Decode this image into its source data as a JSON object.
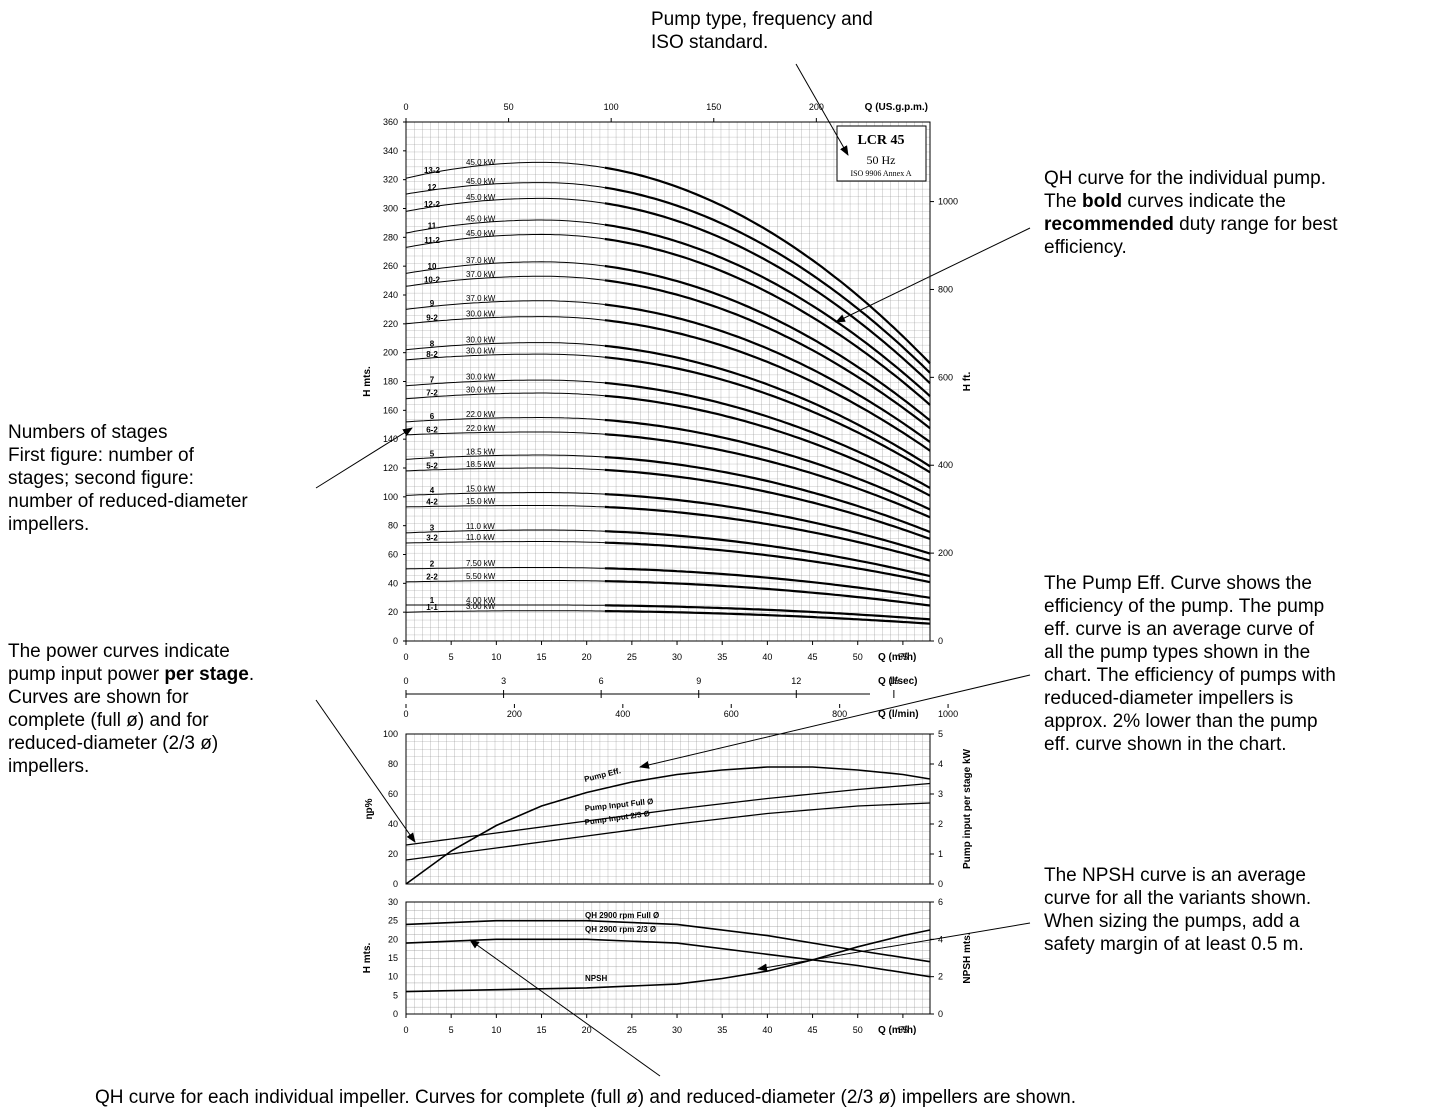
{
  "annotations": {
    "pump_type": [
      "Pump type, frequency and",
      "ISO standard."
    ],
    "qh_curve": {
      "line1": "QH curve for the individual pump.",
      "line2_pre": "The ",
      "line2_bold": "bold",
      "line2_post": " curves indicate the",
      "line3_bold": "recommended",
      "line3_post": " duty range for best",
      "line4": "efficiency."
    },
    "stages": [
      "Numbers of stages",
      "First figure: number of",
      "stages; second figure:",
      "number of reduced-diameter",
      "impellers."
    ],
    "power": {
      "line1": "The power curves indicate",
      "line2_pre": "pump input power ",
      "line2_bold": "per stage",
      "line2_post": ".",
      "rest": [
        "Curves are shown for",
        "complete (full ø) and for",
        "reduced-diameter (2/3 ø)",
        "impellers."
      ]
    },
    "eff": [
      "The Pump Eff. Curve shows the",
      "efficiency of the pump. The pump",
      "eff. curve is an average curve of",
      "all the pump types shown in the",
      "chart. The efficiency of pumps with",
      "reduced-diameter impellers is",
      "approx. 2% lower than the pump",
      "eff. curve shown in the chart."
    ],
    "npsh": [
      "The NPSH curve is an average",
      "curve for all the variants shown.",
      "When sizing the pumps, add a",
      "safety margin of at least 0.5 m."
    ],
    "bottom": "QH curve for each  individual impeller. Curves for complete (full ø) and reduced-diameter (2/3 ø) impellers are shown."
  },
  "chart_data": [
    {
      "type": "line",
      "title_box": {
        "model": "LCR 45",
        "frequency": "50 Hz",
        "standard": "ISO 9906 Annex A"
      },
      "x_label": "Q (m³/h)",
      "x_ticks": [
        0,
        5,
        10,
        15,
        20,
        25,
        30,
        35,
        40,
        45,
        50,
        55
      ],
      "xlim": [
        0,
        58
      ],
      "x_top_label": "Q (US.g.p.m.)",
      "x_top_ticks": [
        0,
        50,
        100,
        150,
        200
      ],
      "x_ls_label": "Q (l/sec)",
      "x_ls_ticks": [
        0,
        3,
        6,
        9,
        12,
        15
      ],
      "x_lmin_label": "Q (l/min)",
      "x_lmin_ticks": [
        0,
        200,
        400,
        600,
        800,
        1000
      ],
      "y_label": "H mts.",
      "y_ticks": [
        0,
        20,
        40,
        60,
        80,
        100,
        120,
        140,
        160,
        180,
        200,
        220,
        240,
        260,
        280,
        300,
        320,
        340,
        360
      ],
      "ylim": [
        0,
        360
      ],
      "y2_label": "H ft.",
      "y2_ticks": [
        0,
        200,
        400,
        600,
        800,
        1000
      ],
      "bold_range": [
        22,
        58
      ],
      "series": [
        {
          "name": "13-2",
          "power": "45.0 kW",
          "h0": 321,
          "hmax": 332
        },
        {
          "name": "12",
          "power": "45.0 kW",
          "h0": 310,
          "hmax": 318
        },
        {
          "name": "12-2",
          "power": "45.0 kW",
          "h0": 298,
          "hmax": 307
        },
        {
          "name": "11",
          "power": "45.0 kW",
          "h0": 283,
          "hmax": 292
        },
        {
          "name": "11-2",
          "power": "45.0 kW",
          "h0": 273,
          "hmax": 282
        },
        {
          "name": "10",
          "power": "37.0 kW",
          "h0": 255,
          "hmax": 263
        },
        {
          "name": "10-2",
          "power": "37.0 kW",
          "h0": 246,
          "hmax": 253
        },
        {
          "name": "9",
          "power": "37.0 kW",
          "h0": 230,
          "hmax": 236
        },
        {
          "name": "9-2",
          "power": "30.0 kW",
          "h0": 220,
          "hmax": 225
        },
        {
          "name": "8",
          "power": "30.0 kW",
          "h0": 202,
          "hmax": 207
        },
        {
          "name": "8-2",
          "power": "30.0 kW",
          "h0": 195,
          "hmax": 199
        },
        {
          "name": "7",
          "power": "30.0 kW",
          "h0": 177,
          "hmax": 181
        },
        {
          "name": "7-2",
          "power": "30.0 kW",
          "h0": 168,
          "hmax": 172
        },
        {
          "name": "6",
          "power": "22.0 kW",
          "h0": 152,
          "hmax": 155
        },
        {
          "name": "6-2",
          "power": "22.0 kW",
          "h0": 143,
          "hmax": 145
        },
        {
          "name": "5",
          "power": "18.5 kW",
          "h0": 126,
          "hmax": 129
        },
        {
          "name": "5-2",
          "power": "18.5 kW",
          "h0": 118,
          "hmax": 120
        },
        {
          "name": "4",
          "power": "15.0 kW",
          "h0": 101,
          "hmax": 103
        },
        {
          "name": "4-2",
          "power": "15.0 kW",
          "h0": 93,
          "hmax": 94
        },
        {
          "name": "3",
          "power": "11.0 kW",
          "h0": 75,
          "hmax": 77
        },
        {
          "name": "3-2",
          "power": "11.0 kW",
          "h0": 68,
          "hmax": 69
        },
        {
          "name": "2",
          "power": "7.50 kW",
          "h0": 50,
          "hmax": 51
        },
        {
          "name": "2-2",
          "power": "5.50 kW",
          "h0": 41,
          "hmax": 42
        },
        {
          "name": "1",
          "power": "4.00 kW",
          "h0": 25,
          "hmax": 25
        },
        {
          "name": "1-1",
          "power": "3.00 kW",
          "h0": 20,
          "hmax": 21
        }
      ]
    },
    {
      "type": "line",
      "y_label": "ɳp%",
      "y_ticks": [
        0,
        20,
        40,
        60,
        80,
        100
      ],
      "ylim": [
        0,
        100
      ],
      "y2_label": "Pump input per stage kW",
      "y2_ticks": [
        0,
        1,
        2,
        3,
        4,
        5
      ],
      "xlim": [
        0,
        58
      ],
      "series": [
        {
          "name": "Pump Eff.",
          "x": [
            0,
            5,
            10,
            15,
            20,
            25,
            30,
            35,
            40,
            45,
            50,
            55,
            58
          ],
          "y": [
            0,
            22,
            39,
            52,
            61,
            68,
            73,
            76,
            78,
            78,
            76,
            73,
            70
          ]
        },
        {
          "name": "Pump Input Full Ø",
          "x": [
            0,
            10,
            20,
            30,
            40,
            50,
            58
          ],
          "y": [
            26,
            34,
            42,
            50,
            57,
            63,
            67
          ]
        },
        {
          "name": "Pump Input 2/3 Ø",
          "x": [
            0,
            10,
            20,
            30,
            40,
            50,
            58
          ],
          "y": [
            16,
            24,
            32,
            40,
            47,
            52,
            54
          ]
        }
      ]
    },
    {
      "type": "line",
      "x_label": "Q (m³/h)",
      "x_ticks": [
        0,
        5,
        10,
        15,
        20,
        25,
        30,
        35,
        40,
        45,
        50,
        55
      ],
      "xlim": [
        0,
        58
      ],
      "y_label": "H mts.",
      "y_ticks": [
        0,
        5,
        10,
        15,
        20,
        25,
        30
      ],
      "ylim": [
        0,
        30
      ],
      "y2_label": "NPSH mts.",
      "y2_ticks": [
        0,
        2,
        4,
        6
      ],
      "series": [
        {
          "name": "QH 2900 rpm Full Ø",
          "x": [
            0,
            10,
            20,
            30,
            40,
            50,
            58
          ],
          "y": [
            24,
            25,
            25,
            24,
            21,
            17,
            14
          ]
        },
        {
          "name": "QH 2900 rpm 2/3 Ø",
          "x": [
            0,
            10,
            20,
            30,
            40,
            50,
            58
          ],
          "y": [
            19,
            20,
            20,
            19,
            16,
            13,
            10
          ]
        },
        {
          "name": "NPSH",
          "x": [
            0,
            10,
            20,
            30,
            35,
            40,
            45,
            50,
            55,
            58
          ],
          "y": [
            1.2,
            1.3,
            1.4,
            1.6,
            1.9,
            2.3,
            2.9,
            3.6,
            4.2,
            4.5
          ]
        }
      ]
    }
  ]
}
